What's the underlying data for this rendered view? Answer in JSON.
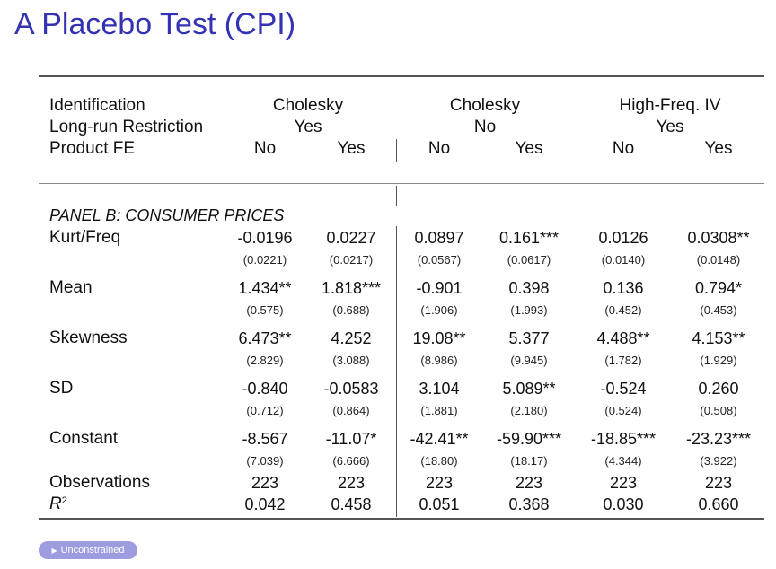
{
  "slide": {
    "title": "A Placebo Test (CPI)"
  },
  "header": {
    "identification": {
      "label": "Identification",
      "groups": [
        "Cholesky",
        "Cholesky",
        "High-Freq. IV"
      ]
    },
    "longrun": {
      "label": "Long-run Restriction",
      "groups": [
        "Yes",
        "No",
        "Yes"
      ]
    },
    "productfe": {
      "label": "Product FE",
      "cols": [
        "No",
        "Yes",
        "No",
        "Yes",
        "No",
        "Yes"
      ]
    }
  },
  "panel": {
    "title": "PANEL B: CONSUMER PRICES"
  },
  "rows": [
    {
      "label": "Kurt/Freq",
      "coef": [
        "-0.0196",
        "0.0227",
        "0.0897",
        "0.161***",
        "0.0126",
        "0.0308**"
      ],
      "se": [
        "(0.0221)",
        "(0.0217)",
        "(0.0567)",
        "(0.0617)",
        "(0.0140)",
        "(0.0148)"
      ]
    },
    {
      "label": "Mean",
      "coef": [
        "1.434**",
        "1.818***",
        "-0.901",
        "0.398",
        "0.136",
        "0.794*"
      ],
      "se": [
        "(0.575)",
        "(0.688)",
        "(1.906)",
        "(1.993)",
        "(0.452)",
        "(0.453)"
      ]
    },
    {
      "label": "Skewness",
      "coef": [
        "6.473**",
        "4.252",
        "19.08**",
        "5.377",
        "4.488**",
        "4.153**"
      ],
      "se": [
        "(2.829)",
        "(3.088)",
        "(8.986)",
        "(9.945)",
        "(1.782)",
        "(1.929)"
      ]
    },
    {
      "label": "SD",
      "coef": [
        "-0.840",
        "-0.0583",
        "3.104",
        "5.089**",
        "-0.524",
        "0.260"
      ],
      "se": [
        "(0.712)",
        "(0.864)",
        "(1.881)",
        "(2.180)",
        "(0.524)",
        "(0.508)"
      ]
    },
    {
      "label": "Constant",
      "coef": [
        "-8.567",
        "-11.07*",
        "-42.41**",
        "-59.90***",
        "-18.85***",
        "-23.23***"
      ],
      "se": [
        "(7.039)",
        "(6.666)",
        "(18.80)",
        "(18.17)",
        "(4.344)",
        "(3.922)"
      ]
    }
  ],
  "observations": {
    "label": "Observations",
    "values": [
      "223",
      "223",
      "223",
      "223",
      "223",
      "223"
    ]
  },
  "r2": {
    "label_base": "R",
    "label_sup": "2",
    "values": [
      "0.042",
      "0.458",
      "0.051",
      "0.368",
      "0.030",
      "0.660"
    ]
  },
  "nav": {
    "label": "Unconstrained",
    "icon": "triangle-right-icon"
  }
}
